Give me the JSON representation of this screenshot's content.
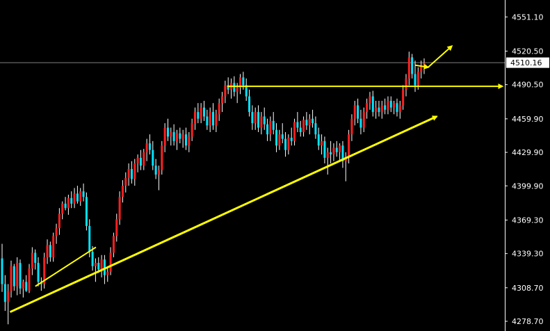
{
  "chart_data": {
    "type": "candlestick",
    "title": "",
    "xlabel": "",
    "ylabel": "",
    "ylim": [
      4270.0,
      4565.0
    ],
    "y_ticks": [
      "4551.10",
      "4520.50",
      "4490.50",
      "4459.90",
      "4429.90",
      "4399.90",
      "4369.30",
      "4339.30",
      "4308.70",
      "4278.70"
    ],
    "y_tick_values": [
      4551.1,
      4520.5,
      4490.5,
      4459.9,
      4429.9,
      4399.9,
      4369.3,
      4339.3,
      4308.7,
      4278.7
    ],
    "current_price": "4510.16",
    "current_price_value": 4510.16,
    "grid": false,
    "colors": {
      "background": "#000000",
      "up": "#ff2020",
      "down": "#00e5ff",
      "wick": "#ffffff",
      "annotation": "#ffff00",
      "price_line": "#7f7f7f",
      "axis": "#ffffff"
    },
    "candles": [
      [
        4335,
        4348,
        4305,
        4312
      ],
      [
        4312,
        4320,
        4288,
        4296
      ],
      [
        4296,
        4312,
        4276,
        4306
      ],
      [
        4306,
        4333,
        4300,
        4328
      ],
      [
        4328,
        4330,
        4306,
        4310
      ],
      [
        4310,
        4336,
        4302,
        4331
      ],
      [
        4331,
        4334,
        4303,
        4308
      ],
      [
        4308,
        4316,
        4300,
        4314
      ],
      [
        4314,
        4320,
        4305,
        4306
      ],
      [
        4306,
        4330,
        4304,
        4326
      ],
      [
        4326,
        4345,
        4320,
        4340
      ],
      [
        4340,
        4343,
        4325,
        4331
      ],
      [
        4331,
        4336,
        4310,
        4314
      ],
      [
        4314,
        4318,
        4306,
        4312
      ],
      [
        4312,
        4340,
        4308,
        4336
      ],
      [
        4336,
        4352,
        4330,
        4347
      ],
      [
        4347,
        4350,
        4332,
        4336
      ],
      [
        4336,
        4358,
        4332,
        4355
      ],
      [
        4355,
        4366,
        4348,
        4362
      ],
      [
        4362,
        4380,
        4356,
        4375
      ],
      [
        4375,
        4386,
        4370,
        4384
      ],
      [
        4384,
        4390,
        4378,
        4380
      ],
      [
        4380,
        4392,
        4374,
        4389
      ],
      [
        4389,
        4395,
        4380,
        4384
      ],
      [
        4384,
        4398,
        4380,
        4393
      ],
      [
        4393,
        4400,
        4384,
        4386
      ],
      [
        4386,
        4398,
        4382,
        4395
      ],
      [
        4395,
        4402,
        4386,
        4390
      ],
      [
        4390,
        4394,
        4360,
        4364
      ],
      [
        4364,
        4370,
        4336,
        4341
      ],
      [
        4341,
        4346,
        4324,
        4328
      ],
      [
        4328,
        4335,
        4314,
        4331
      ],
      [
        4331,
        4336,
        4322,
        4325
      ],
      [
        4325,
        4338,
        4318,
        4334
      ],
      [
        4334,
        4338,
        4312,
        4320
      ],
      [
        4320,
        4326,
        4314,
        4323
      ],
      [
        4323,
        4345,
        4320,
        4340
      ],
      [
        4340,
        4358,
        4336,
        4355
      ],
      [
        4355,
        4375,
        4350,
        4370
      ],
      [
        4370,
        4395,
        4365,
        4390
      ],
      [
        4390,
        4405,
        4385,
        4400
      ],
      [
        4400,
        4412,
        4394,
        4407
      ],
      [
        4407,
        4420,
        4400,
        4415
      ],
      [
        4415,
        4422,
        4402,
        4406
      ],
      [
        4406,
        4424,
        4400,
        4420
      ],
      [
        4420,
        4428,
        4412,
        4425
      ],
      [
        4425,
        4432,
        4414,
        4418
      ],
      [
        4418,
        4433,
        4414,
        4430
      ],
      [
        4430,
        4442,
        4422,
        4438
      ],
      [
        4438,
        4446,
        4428,
        4432
      ],
      [
        4432,
        4440,
        4414,
        4418
      ],
      [
        4418,
        4424,
        4406,
        4410
      ],
      [
        4410,
        4418,
        4396,
        4414
      ],
      [
        4414,
        4440,
        4410,
        4436
      ],
      [
        4436,
        4456,
        4430,
        4452
      ],
      [
        4452,
        4460,
        4440,
        4444
      ],
      [
        4444,
        4452,
        4436,
        4448
      ],
      [
        4448,
        4455,
        4436,
        4440
      ],
      [
        4440,
        4450,
        4432,
        4447
      ],
      [
        4447,
        4452,
        4438,
        4442
      ],
      [
        4442,
        4450,
        4434,
        4446
      ],
      [
        4446,
        4452,
        4432,
        4436
      ],
      [
        4436,
        4448,
        4430,
        4444
      ],
      [
        4444,
        4460,
        4440,
        4456
      ],
      [
        4456,
        4470,
        4450,
        4466
      ],
      [
        4466,
        4474,
        4456,
        4460
      ],
      [
        4460,
        4474,
        4456,
        4470
      ],
      [
        4470,
        4476,
        4458,
        4462
      ],
      [
        4462,
        4468,
        4450,
        4454
      ],
      [
        4454,
        4470,
        4448,
        4466
      ],
      [
        4466,
        4474,
        4450,
        4454
      ],
      [
        4454,
        4468,
        4448,
        4464
      ],
      [
        4464,
        4478,
        4458,
        4474
      ],
      [
        4474,
        4484,
        4466,
        4480
      ],
      [
        4480,
        4494,
        4474,
        4490
      ],
      [
        4490,
        4497,
        4482,
        4486
      ],
      [
        4486,
        4496,
        4478,
        4492
      ],
      [
        4492,
        4498,
        4480,
        4484
      ],
      [
        4484,
        4492,
        4474,
        4488
      ],
      [
        4488,
        4500,
        4482,
        4497
      ],
      [
        4497,
        4502,
        4486,
        4490
      ],
      [
        4490,
        4496,
        4476,
        4480
      ],
      [
        4480,
        4486,
        4462,
        4466
      ],
      [
        4466,
        4472,
        4450,
        4456
      ],
      [
        4456,
        4470,
        4450,
        4466
      ],
      [
        4466,
        4472,
        4448,
        4452
      ],
      [
        4452,
        4466,
        4446,
        4462
      ],
      [
        4462,
        4470,
        4450,
        4455
      ],
      [
        4455,
        4460,
        4440,
        4446
      ],
      [
        4446,
        4462,
        4440,
        4458
      ],
      [
        4458,
        4466,
        4446,
        4450
      ],
      [
        4450,
        4456,
        4430,
        4436
      ],
      [
        4436,
        4450,
        4432,
        4446
      ],
      [
        4446,
        4456,
        4438,
        4442
      ],
      [
        4442,
        4448,
        4426,
        4432
      ],
      [
        4432,
        4446,
        4428,
        4443
      ],
      [
        4443,
        4452,
        4436,
        4440
      ],
      [
        4440,
        4460,
        4436,
        4457
      ],
      [
        4457,
        4466,
        4448,
        4452
      ],
      [
        4452,
        4458,
        4444,
        4448
      ],
      [
        4448,
        4462,
        4444,
        4459
      ],
      [
        4459,
        4466,
        4450,
        4454
      ],
      [
        4454,
        4464,
        4446,
        4460
      ],
      [
        4460,
        4468,
        4452,
        4456
      ],
      [
        4456,
        4462,
        4442,
        4446
      ],
      [
        4446,
        4452,
        4432,
        4436
      ],
      [
        4436,
        4446,
        4428,
        4440
      ],
      [
        4440,
        4444,
        4420,
        4425
      ],
      [
        4425,
        4434,
        4410,
        4430
      ],
      [
        4430,
        4440,
        4420,
        4428
      ],
      [
        4428,
        4438,
        4422,
        4434
      ],
      [
        4434,
        4440,
        4426,
        4430
      ],
      [
        4430,
        4438,
        4422,
        4436
      ],
      [
        4436,
        4440,
        4416,
        4422
      ],
      [
        4422,
        4430,
        4404,
        4426
      ],
      [
        4426,
        4450,
        4420,
        4446
      ],
      [
        4446,
        4464,
        4440,
        4460
      ],
      [
        4460,
        4476,
        4454,
        4472
      ],
      [
        4472,
        4478,
        4456,
        4460
      ],
      [
        4460,
        4468,
        4446,
        4452
      ],
      [
        4452,
        4470,
        4448,
        4466
      ],
      [
        4466,
        4478,
        4460,
        4474
      ],
      [
        4474,
        4484,
        4468,
        4480
      ],
      [
        4480,
        4485,
        4462,
        4466
      ],
      [
        4466,
        4476,
        4460,
        4470
      ],
      [
        4470,
        4476,
        4462,
        4466
      ],
      [
        4466,
        4476,
        4460,
        4472
      ],
      [
        4472,
        4478,
        4464,
        4468
      ],
      [
        4468,
        4480,
        4464,
        4476
      ],
      [
        4476,
        4480,
        4466,
        4470
      ],
      [
        4470,
        4476,
        4464,
        4474
      ],
      [
        4474,
        4478,
        4462,
        4466
      ],
      [
        4466,
        4476,
        4460,
        4472
      ],
      [
        4472,
        4490,
        4468,
        4486
      ],
      [
        4486,
        4500,
        4480,
        4496
      ],
      [
        4496,
        4520,
        4490,
        4515
      ],
      [
        4515,
        4518,
        4496,
        4500
      ],
      [
        4500,
        4512,
        4484,
        4490
      ],
      [
        4490,
        4506,
        4486,
        4502
      ],
      [
        4502,
        4512,
        4496,
        4508
      ],
      [
        4508,
        4514,
        4500,
        4510
      ]
    ],
    "annotations": [
      {
        "type": "arrow",
        "from": [
          0.02,
          4287
        ],
        "to": [
          0.865,
          4462
        ]
      },
      {
        "type": "arrow",
        "from": [
          0.45,
          4489
        ],
        "to": [
          0.995,
          4489
        ]
      },
      {
        "type": "arrow",
        "from": [
          0.822,
          4508
        ],
        "to": [
          0.848,
          4506
        ]
      },
      {
        "type": "arrow",
        "from": [
          0.848,
          4506
        ],
        "to": [
          0.895,
          4525
        ]
      },
      {
        "type": "line",
        "from": [
          0.07,
          4310
        ],
        "to": [
          0.19,
          4345
        ]
      }
    ]
  }
}
